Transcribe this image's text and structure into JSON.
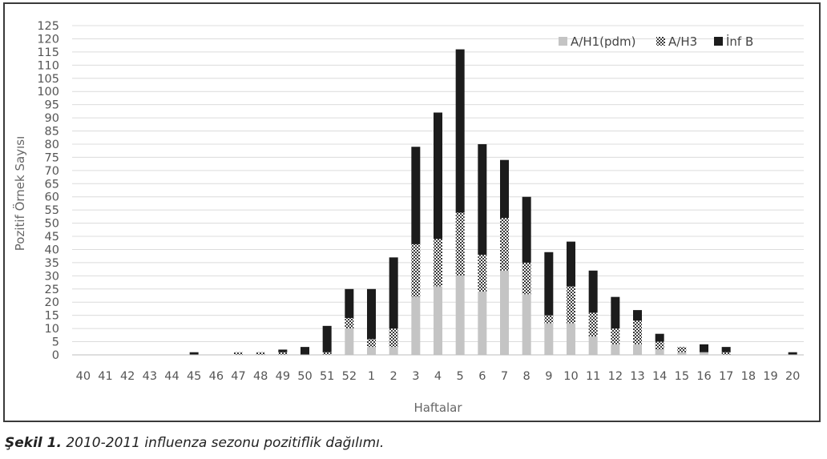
{
  "chart_data": {
    "type": "bar",
    "stacked": true,
    "xlabel": "Haftalar",
    "ylabel": "Pozitif Örnek Sayısı",
    "ylim": [
      0,
      125
    ],
    "ytick_step": 5,
    "grid": true,
    "legend_position": "top-right",
    "categories": [
      "40",
      "41",
      "42",
      "43",
      "44",
      "45",
      "46",
      "47",
      "48",
      "49",
      "50",
      "51",
      "52",
      "1",
      "2",
      "3",
      "4",
      "5",
      "6",
      "7",
      "8",
      "9",
      "10",
      "11",
      "12",
      "13",
      "14",
      "15",
      "16",
      "17",
      "18",
      "19",
      "20"
    ],
    "series": [
      {
        "name": "A/H1(pdm)",
        "color": "#c4c4c4",
        "pattern": "solid",
        "values": [
          0,
          0,
          0,
          0,
          0,
          0,
          0,
          0,
          0,
          0,
          0,
          0,
          10,
          3,
          3,
          22,
          26,
          30,
          24,
          32,
          23,
          12,
          12,
          7,
          4,
          4,
          2,
          1,
          1,
          0,
          0,
          0,
          0
        ]
      },
      {
        "name": "A/H3",
        "color": "#8a8a8a",
        "pattern": "checker",
        "values": [
          0,
          0,
          0,
          0,
          0,
          0,
          0,
          1,
          1,
          1,
          0,
          1,
          4,
          3,
          7,
          20,
          18,
          24,
          14,
          20,
          12,
          3,
          14,
          9,
          6,
          9,
          3,
          2,
          0,
          1,
          0,
          0,
          0
        ]
      },
      {
        "name": "İnf B",
        "color": "#1c1c1c",
        "pattern": "solid",
        "values": [
          0,
          0,
          0,
          0,
          0,
          1,
          0,
          0,
          0,
          1,
          3,
          10,
          11,
          19,
          27,
          37,
          48,
          62,
          42,
          22,
          25,
          24,
          17,
          16,
          12,
          4,
          3,
          0,
          3,
          2,
          0,
          0,
          1
        ]
      }
    ]
  },
  "caption": {
    "label": "Şekil 1.",
    "text": " 2010-2011 influenza sezonu pozitiflik dağılımı."
  }
}
